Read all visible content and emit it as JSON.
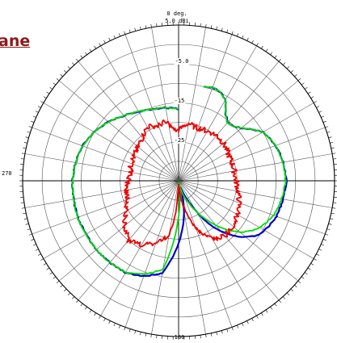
{
  "heading": {
    "plane_label": "ane"
  },
  "chart_data": {
    "type": "polar",
    "scale_top_label": "0 deg.",
    "scale_max_label": "5.0   dBi",
    "angle_labels": {
      "right": "",
      "bottom": "180",
      "left": "270"
    },
    "ring_labels": [
      "-5.0",
      "-15",
      "-25"
    ],
    "rlim_dbi": [
      -35,
      5
    ],
    "angular_grid_step_deg": 10,
    "series": [
      {
        "color": "#0000cc",
        "points": [
          [
            15,
            -10
          ],
          [
            20,
            -9.5
          ],
          [
            25,
            -9.8
          ],
          [
            30,
            -11
          ],
          [
            35,
            -14
          ],
          [
            40,
            -15.5
          ],
          [
            45,
            -15.2
          ],
          [
            50,
            -14
          ],
          [
            55,
            -12
          ],
          [
            60,
            -10
          ],
          [
            70,
            -8.5
          ],
          [
            80,
            -7.8
          ],
          [
            90,
            -7.4
          ],
          [
            100,
            -7.8
          ],
          [
            110,
            -8.3
          ],
          [
            120,
            -9.5
          ],
          [
            125,
            -10.5
          ],
          [
            130,
            -12.5
          ],
          [
            135,
            -15
          ],
          [
            140,
            -18
          ],
          [
            145,
            -21.5
          ],
          [
            150,
            -26
          ],
          [
            155,
            -29.5
          ],
          [
            160,
            -32
          ],
          [
            163,
            -33
          ],
          [
            170,
            -27
          ],
          [
            175,
            -23
          ],
          [
            180,
            -19
          ],
          [
            190,
            -11
          ],
          [
            200,
            -9
          ],
          [
            210,
            -7.8
          ],
          [
            220,
            -7.6
          ],
          [
            230,
            -7.5
          ],
          [
            240,
            -7.6
          ],
          [
            250,
            -7.5
          ],
          [
            260,
            -7.7
          ],
          [
            270,
            -7.8
          ],
          [
            280,
            -8.2
          ],
          [
            290,
            -8.8
          ],
          [
            300,
            -10
          ],
          [
            310,
            -11.5
          ],
          [
            320,
            -13.2
          ],
          [
            330,
            -14.5
          ],
          [
            340,
            -15.4
          ],
          [
            350,
            -16
          ],
          [
            355,
            -16.3
          ],
          [
            360,
            -16.5
          ]
        ]
      },
      {
        "color": "#00dd00",
        "points": [
          [
            15,
            -10
          ],
          [
            20,
            -9.5
          ],
          [
            25,
            -9.8
          ],
          [
            30,
            -11
          ],
          [
            35,
            -14
          ],
          [
            40,
            -15.5
          ],
          [
            45,
            -15.2
          ],
          [
            50,
            -14
          ],
          [
            55,
            -12
          ],
          [
            60,
            -10
          ],
          [
            70,
            -8.5
          ],
          [
            80,
            -7.8
          ],
          [
            90,
            -7.6
          ],
          [
            100,
            -8.2
          ],
          [
            110,
            -9
          ],
          [
            120,
            -11
          ],
          [
            125,
            -12.5
          ],
          [
            130,
            -14.5
          ],
          [
            135,
            -17
          ],
          [
            140,
            -20
          ],
          [
            145,
            -23
          ],
          [
            150,
            -26
          ],
          [
            155,
            -28.5
          ],
          [
            160,
            -30.5
          ],
          [
            165,
            -32.5
          ],
          [
            170,
            -34
          ],
          [
            172,
            -34.5
          ],
          [
            180,
            -26
          ],
          [
            190,
            -12
          ],
          [
            200,
            -9.5
          ],
          [
            210,
            -7.8
          ],
          [
            220,
            -7.6
          ],
          [
            230,
            -7.5
          ],
          [
            240,
            -7.6
          ],
          [
            250,
            -7.5
          ],
          [
            260,
            -7.7
          ],
          [
            270,
            -7.8
          ],
          [
            280,
            -8.2
          ],
          [
            290,
            -8.8
          ],
          [
            300,
            -10
          ],
          [
            310,
            -11.5
          ],
          [
            320,
            -13.2
          ],
          [
            330,
            -14.5
          ],
          [
            340,
            -15.4
          ],
          [
            350,
            -16
          ],
          [
            355,
            -16.3
          ],
          [
            360,
            -16.5
          ]
        ]
      },
      {
        "color": "#ee0000",
        "points": [
          [
            0,
            -22
          ],
          [
            5,
            -21
          ],
          [
            10,
            -20
          ],
          [
            15,
            -20.5
          ],
          [
            20,
            -20.6
          ],
          [
            30,
            -20.3
          ],
          [
            40,
            -19.8
          ],
          [
            50,
            -20
          ],
          [
            60,
            -20.5
          ],
          [
            70,
            -20.6
          ],
          [
            80,
            -20.5
          ],
          [
            90,
            -20.3
          ],
          [
            100,
            -19.5
          ],
          [
            110,
            -18.5
          ],
          [
            120,
            -17.5
          ],
          [
            130,
            -17
          ],
          [
            140,
            -16.5
          ],
          [
            145,
            -17
          ],
          [
            150,
            -18
          ],
          [
            155,
            -19.5
          ],
          [
            160,
            -22
          ],
          [
            165,
            -26
          ],
          [
            170,
            -29
          ],
          [
            175,
            -32.5
          ],
          [
            180,
            -33.5
          ],
          [
            183,
            -33
          ],
          [
            185,
            -27
          ],
          [
            190,
            -21
          ],
          [
            200,
            -18
          ],
          [
            210,
            -16
          ],
          [
            220,
            -15
          ],
          [
            230,
            -17
          ],
          [
            240,
            -19.5
          ],
          [
            250,
            -21
          ],
          [
            260,
            -21.5
          ],
          [
            270,
            -22
          ],
          [
            280,
            -22.5
          ],
          [
            290,
            -22
          ],
          [
            300,
            -22
          ],
          [
            310,
            -21.5
          ],
          [
            320,
            -20.5
          ],
          [
            330,
            -19
          ],
          [
            340,
            -20
          ],
          [
            345,
            -19.5
          ],
          [
            350,
            -20
          ],
          [
            355,
            -22
          ],
          [
            360,
            -22
          ]
        ]
      }
    ]
  }
}
